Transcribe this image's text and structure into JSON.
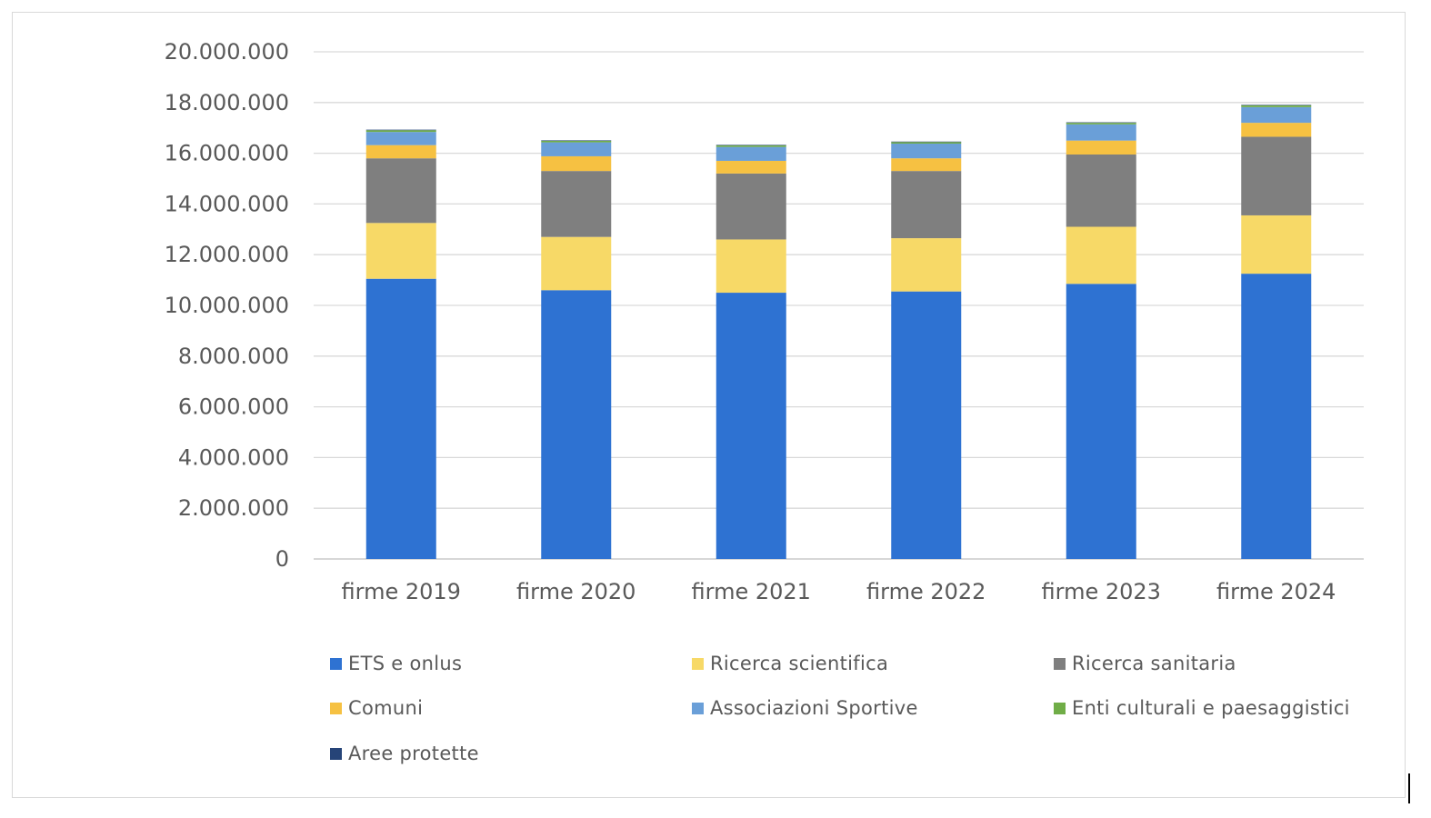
{
  "chart_data": {
    "type": "bar",
    "stacked": true,
    "categories": [
      "firme 2019",
      "firme 2020",
      "firme 2021",
      "firme 2022",
      "firme 2023",
      "firme 2024"
    ],
    "ylim": [
      0,
      20000000
    ],
    "yticks": [
      "0",
      "2.000.000",
      "4.000.000",
      "6.000.000",
      "8.000.000",
      "10.000.000",
      "12.000.000",
      "14.000.000",
      "16.000.000",
      "18.000.000",
      "20.000.000"
    ],
    "grid": true,
    "legend_position": "bottom",
    "series": [
      {
        "name": "ETS  e onlus",
        "color": "#2e72d2",
        "values": [
          11050000,
          10600000,
          10500000,
          10550000,
          10850000,
          11250000
        ]
      },
      {
        "name": "Ricerca scientifica",
        "color": "#f7d967",
        "values": [
          2200000,
          2100000,
          2100000,
          2100000,
          2250000,
          2300000
        ]
      },
      {
        "name": "Ricerca sanitaria",
        "color": "#7f7f7f",
        "values": [
          2550000,
          2600000,
          2600000,
          2650000,
          2850000,
          3100000
        ]
      },
      {
        "name": "Comuni",
        "color": "#f6c142",
        "values": [
          520000,
          580000,
          500000,
          500000,
          550000,
          550000
        ]
      },
      {
        "name": "Associazioni Sportive",
        "color": "#6a9fd8",
        "values": [
          520000,
          550000,
          550000,
          580000,
          640000,
          620000
        ]
      },
      {
        "name": "Enti culturali e paesaggistici",
        "color": "#70ad47",
        "values": [
          70000,
          60000,
          60000,
          60000,
          60000,
          70000
        ]
      },
      {
        "name": "Aree protette",
        "color": "#264478",
        "values": [
          20000,
          20000,
          20000,
          20000,
          20000,
          20000
        ]
      }
    ]
  }
}
